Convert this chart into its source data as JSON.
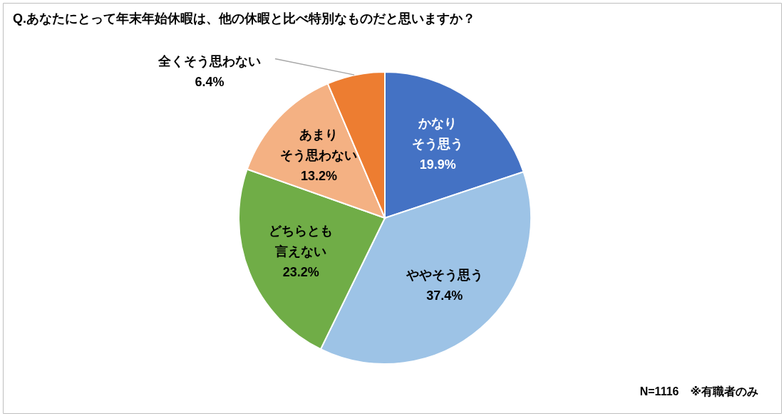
{
  "chart_data": {
    "type": "pie",
    "title": "Q.あなたにとって年末年始休暇は、他の休暇と比べ特別なものだと思いますか？",
    "categories": [
      "かなりそう思う",
      "ややそう思う",
      "どちらとも言えない",
      "あまりそう思わない",
      "全くそう思わない"
    ],
    "values": [
      19.9,
      37.4,
      23.2,
      13.2,
      6.4
    ],
    "value_labels": [
      "19.9%",
      "37.4%",
      "23.2%",
      "13.2%",
      "6.4%"
    ],
    "colors": [
      "#4472c4",
      "#9dc3e6",
      "#70ad47",
      "#f4b183",
      "#ed7d31"
    ],
    "annotations": [
      "N=1116　※有職者のみ"
    ],
    "legend": false
  }
}
